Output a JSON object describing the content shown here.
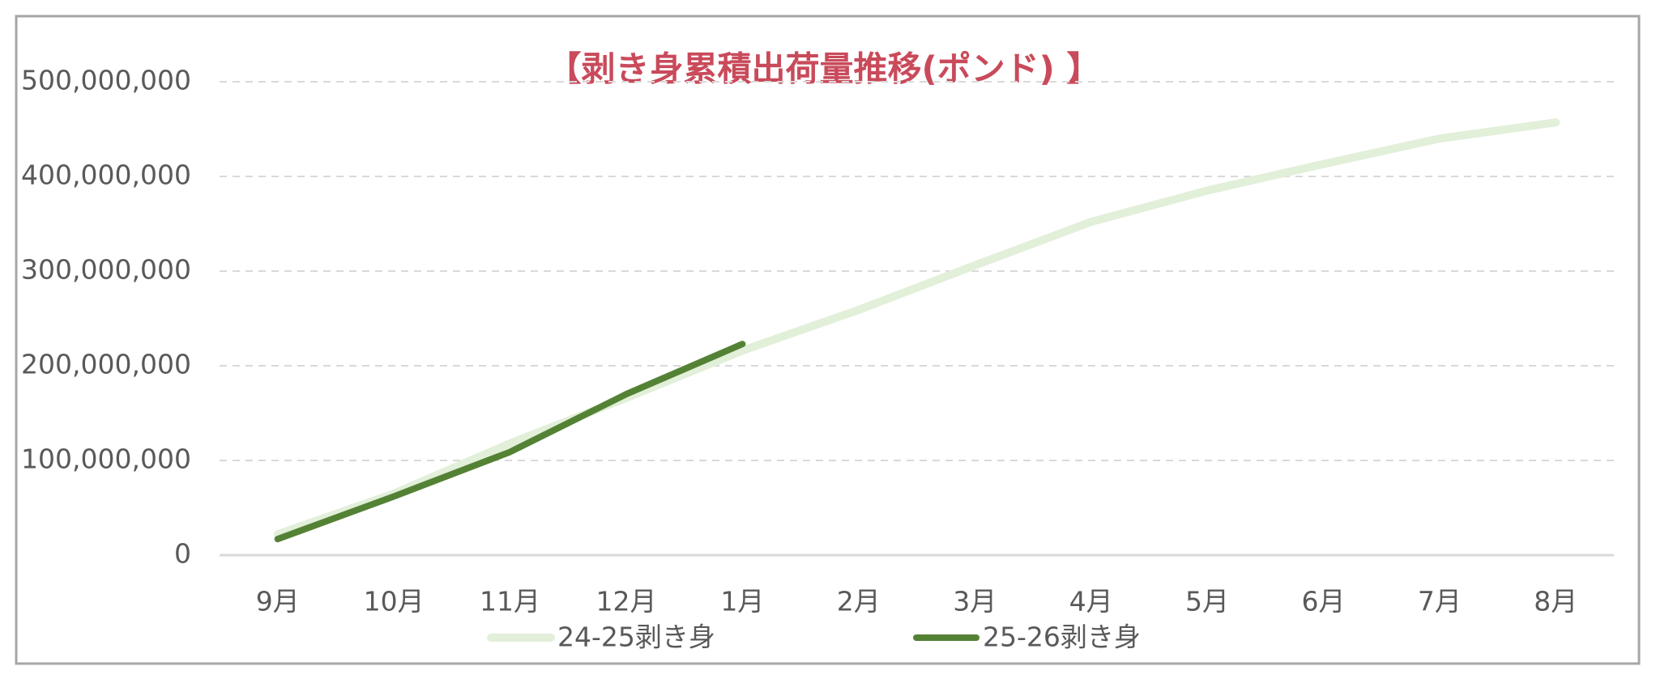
{
  "chart_data": {
    "type": "line",
    "title": "【剥き身累積出荷量推移(ポンド) 】",
    "categories": [
      "9月",
      "10月",
      "11月",
      "12月",
      "1月",
      "2月",
      "3月",
      "4月",
      "5月",
      "6月",
      "7月",
      "8月"
    ],
    "series": [
      {
        "name": "24-25剥き身",
        "color": "#e2efd9",
        "values": [
          22000000,
          65000000,
          118000000,
          166000000,
          216000000,
          259000000,
          306000000,
          352000000,
          385000000,
          413000000,
          440000000,
          457000000
        ]
      },
      {
        "name": "25-26剥き身",
        "color": "#548235",
        "values": [
          17000000,
          62000000,
          109000000,
          170000000,
          223000000,
          null,
          null,
          null,
          null,
          null,
          null,
          null
        ]
      }
    ],
    "ylim": [
      0,
      500000000
    ],
    "yticks": [
      {
        "value": 0,
        "label": "0"
      },
      {
        "value": 100000000,
        "label": "100,000,000"
      },
      {
        "value": 200000000,
        "label": "200,000,000"
      },
      {
        "value": 300000000,
        "label": "300,000,000"
      },
      {
        "value": 400000000,
        "label": "400,000,000"
      },
      {
        "value": 500000000,
        "label": "500,000,000"
      }
    ],
    "grid": true,
    "title_color": "#c94a5a"
  }
}
